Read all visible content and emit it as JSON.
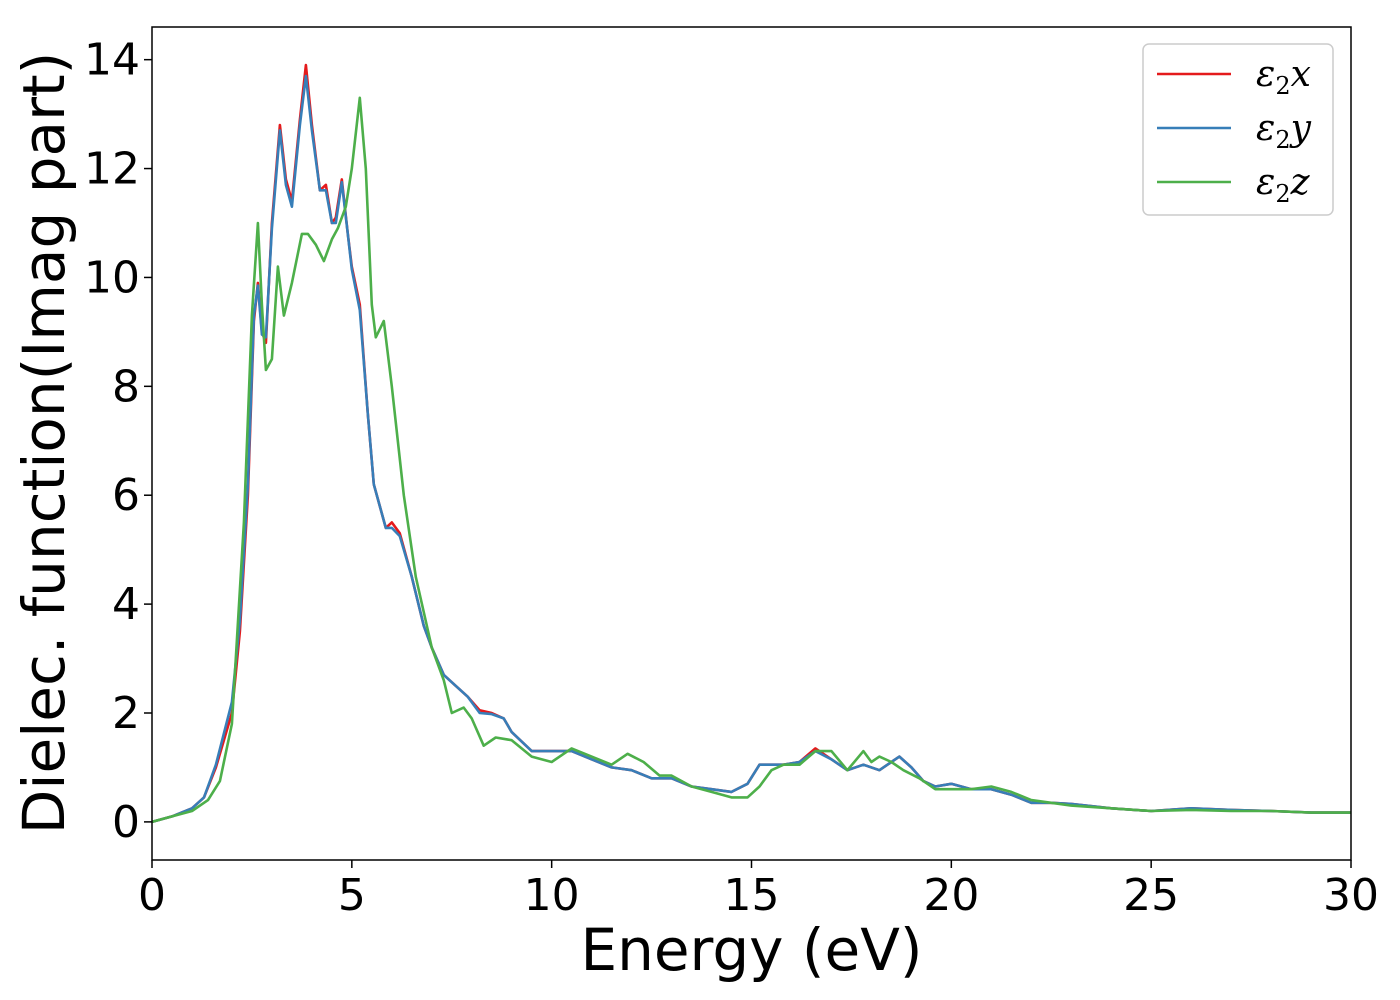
{
  "chart_data": {
    "type": "line",
    "xlabel": "Energy (eV)",
    "ylabel": "Dielec. function(Imag part)",
    "xlim": [
      0,
      30
    ],
    "ylim": [
      -0.7,
      14.6
    ],
    "xticks": [
      "0",
      "5",
      "10",
      "15",
      "20",
      "25",
      "30"
    ],
    "yticks": [
      "0",
      "2",
      "4",
      "6",
      "8",
      "10",
      "12",
      "14"
    ],
    "grid": false,
    "legend_position": "top-right",
    "series": [
      {
        "name": "ε2x",
        "legend": {
          "base": "ε",
          "sub": "2",
          "var": "x"
        },
        "color": "#e41a1c",
        "x": [
          0,
          0.5,
          1.0,
          1.3,
          1.6,
          2.0,
          2.2,
          2.4,
          2.55,
          2.65,
          2.75,
          2.85,
          3.0,
          3.2,
          3.35,
          3.5,
          3.7,
          3.85,
          4.0,
          4.2,
          4.35,
          4.5,
          4.6,
          4.75,
          4.9,
          5.0,
          5.2,
          5.4,
          5.55,
          5.7,
          5.85,
          6.0,
          6.2,
          6.5,
          6.8,
          7.0,
          7.3,
          7.6,
          7.9,
          8.2,
          8.5,
          8.8,
          9.0,
          9.5,
          10.0,
          10.5,
          11.0,
          11.5,
          12.0,
          12.5,
          13.0,
          13.5,
          14.0,
          14.5,
          14.9,
          15.2,
          15.5,
          15.8,
          16.2,
          16.6,
          17.0,
          17.4,
          17.8,
          18.2,
          18.5,
          18.7,
          19.0,
          19.3,
          19.6,
          20.0,
          20.5,
          21.0,
          21.5,
          22.0,
          22.5,
          23.0,
          24.0,
          25.0,
          26.0,
          27.0,
          28.0,
          29.0,
          30.0
        ],
        "values": [
          0,
          0.1,
          0.25,
          0.45,
          1.0,
          2.0,
          3.5,
          6.0,
          9.2,
          9.9,
          9.0,
          8.8,
          11.0,
          12.8,
          11.8,
          11.4,
          12.9,
          13.9,
          12.8,
          11.6,
          11.7,
          11.0,
          11.1,
          11.8,
          10.8,
          10.2,
          9.5,
          7.5,
          6.2,
          5.8,
          5.4,
          5.5,
          5.3,
          4.5,
          3.6,
          3.2,
          2.7,
          2.5,
          2.3,
          2.05,
          2.0,
          1.9,
          1.65,
          1.3,
          1.3,
          1.3,
          1.15,
          1.0,
          0.95,
          0.8,
          0.8,
          0.65,
          0.6,
          0.55,
          0.7,
          1.05,
          1.05,
          1.05,
          1.1,
          1.35,
          1.15,
          0.95,
          1.05,
          0.95,
          1.1,
          1.2,
          1.0,
          0.75,
          0.65,
          0.7,
          0.6,
          0.6,
          0.5,
          0.35,
          0.35,
          0.33,
          0.25,
          0.2,
          0.25,
          0.22,
          0.2,
          0.17,
          0.17
        ]
      },
      {
        "name": "ε2y",
        "legend": {
          "base": "ε",
          "sub": "2",
          "var": "y"
        },
        "color": "#377eb8",
        "x": [
          0,
          0.5,
          1.0,
          1.3,
          1.6,
          2.0,
          2.2,
          2.4,
          2.55,
          2.65,
          2.75,
          2.85,
          3.0,
          3.2,
          3.35,
          3.5,
          3.7,
          3.85,
          4.0,
          4.2,
          4.35,
          4.5,
          4.6,
          4.75,
          4.9,
          5.0,
          5.2,
          5.4,
          5.55,
          5.7,
          5.85,
          6.0,
          6.2,
          6.5,
          6.8,
          7.0,
          7.3,
          7.6,
          7.9,
          8.2,
          8.5,
          8.8,
          9.0,
          9.5,
          10.0,
          10.5,
          11.0,
          11.5,
          12.0,
          12.5,
          13.0,
          13.5,
          14.0,
          14.5,
          14.9,
          15.2,
          15.5,
          15.8,
          16.2,
          16.6,
          17.0,
          17.4,
          17.8,
          18.2,
          18.5,
          18.7,
          19.0,
          19.3,
          19.6,
          20.0,
          20.5,
          21.0,
          21.5,
          22.0,
          22.5,
          23.0,
          24.0,
          25.0,
          26.0,
          27.0,
          28.0,
          29.0,
          30.0
        ],
        "values": [
          0,
          0.1,
          0.25,
          0.45,
          1.05,
          2.2,
          3.7,
          6.2,
          9.3,
          9.85,
          8.95,
          8.9,
          10.9,
          12.7,
          11.7,
          11.3,
          12.8,
          13.7,
          12.7,
          11.6,
          11.6,
          11.0,
          11.0,
          11.75,
          10.8,
          10.15,
          9.4,
          7.5,
          6.2,
          5.8,
          5.4,
          5.4,
          5.25,
          4.5,
          3.6,
          3.2,
          2.7,
          2.5,
          2.3,
          2.0,
          1.98,
          1.9,
          1.65,
          1.3,
          1.3,
          1.3,
          1.15,
          1.0,
          0.95,
          0.8,
          0.8,
          0.65,
          0.6,
          0.55,
          0.7,
          1.05,
          1.05,
          1.05,
          1.1,
          1.3,
          1.15,
          0.95,
          1.05,
          0.95,
          1.1,
          1.2,
          1.0,
          0.75,
          0.65,
          0.7,
          0.6,
          0.6,
          0.5,
          0.35,
          0.35,
          0.33,
          0.25,
          0.2,
          0.25,
          0.22,
          0.2,
          0.17,
          0.17
        ]
      },
      {
        "name": "ε2z",
        "legend": {
          "base": "ε",
          "sub": "2",
          "var": "z"
        },
        "color": "#4daf4a",
        "x": [
          0,
          0.5,
          1.0,
          1.4,
          1.7,
          2.0,
          2.3,
          2.5,
          2.65,
          2.75,
          2.85,
          3.0,
          3.15,
          3.3,
          3.5,
          3.75,
          3.9,
          4.1,
          4.3,
          4.5,
          4.65,
          4.85,
          5.0,
          5.2,
          5.35,
          5.5,
          5.6,
          5.8,
          6.0,
          6.3,
          6.6,
          7.0,
          7.3,
          7.5,
          7.8,
          8.0,
          8.3,
          8.6,
          9.0,
          9.5,
          10.0,
          10.5,
          11.0,
          11.5,
          11.9,
          12.3,
          12.7,
          13.0,
          13.5,
          14.0,
          14.5,
          14.9,
          15.2,
          15.5,
          15.8,
          16.2,
          16.6,
          17.0,
          17.4,
          17.8,
          18.0,
          18.2,
          18.5,
          18.8,
          19.2,
          19.6,
          20.0,
          20.5,
          21.0,
          21.5,
          22.0,
          22.5,
          23.0,
          24.0,
          25.0,
          26.0,
          27.0,
          28.0,
          29.0,
          30.0
        ],
        "values": [
          0,
          0.1,
          0.2,
          0.4,
          0.75,
          1.8,
          5.5,
          9.3,
          11.0,
          9.5,
          8.3,
          8.5,
          10.2,
          9.3,
          9.9,
          10.8,
          10.8,
          10.6,
          10.3,
          10.7,
          10.9,
          11.3,
          12.0,
          13.3,
          12.0,
          9.5,
          8.9,
          9.2,
          8.0,
          6.0,
          4.5,
          3.2,
          2.6,
          2.0,
          2.1,
          1.9,
          1.4,
          1.55,
          1.5,
          1.2,
          1.1,
          1.35,
          1.2,
          1.05,
          1.25,
          1.1,
          0.85,
          0.85,
          0.65,
          0.55,
          0.45,
          0.45,
          0.65,
          0.95,
          1.05,
          1.05,
          1.3,
          1.3,
          0.95,
          1.3,
          1.1,
          1.2,
          1.1,
          0.95,
          0.8,
          0.6,
          0.6,
          0.6,
          0.65,
          0.55,
          0.4,
          0.35,
          0.3,
          0.25,
          0.2,
          0.22,
          0.2,
          0.2,
          0.17,
          0.17
        ]
      }
    ]
  }
}
